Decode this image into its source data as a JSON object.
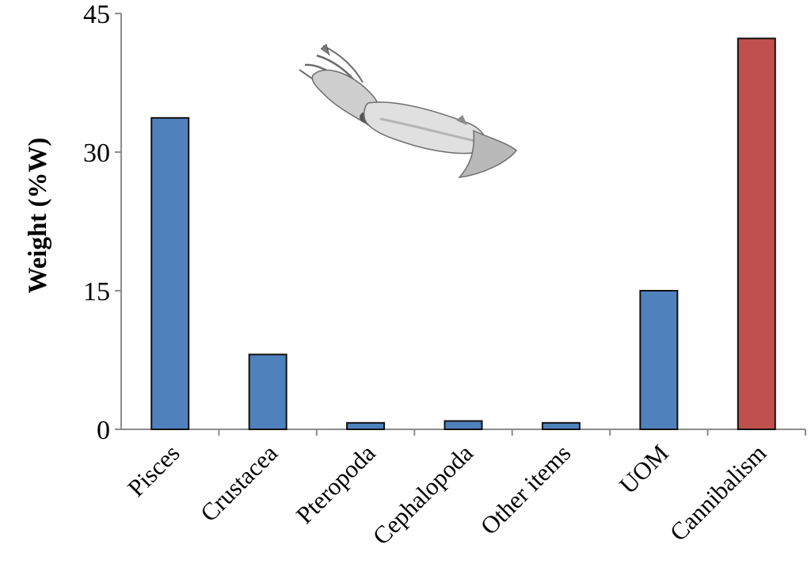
{
  "chart_data": {
    "type": "bar",
    "categories": [
      "Pisces",
      "Crustacea",
      "Pteropoda",
      "Cephalopoda",
      "Other items",
      "UOM",
      "Cannibalism"
    ],
    "values": [
      33.7,
      8.1,
      0.7,
      0.9,
      0.7,
      15.0,
      42.3
    ],
    "bar_colors": [
      "#4f81bd",
      "#4f81bd",
      "#4f81bd",
      "#4f81bd",
      "#4f81bd",
      "#4f81bd",
      "#c0504d"
    ],
    "ylabel": "Weight (%W)",
    "ylim": [
      0,
      45
    ],
    "yticks": [
      "0",
      "15",
      "30",
      "45"
    ],
    "grid": false,
    "legend": "none",
    "illustration": "squid-icon"
  }
}
